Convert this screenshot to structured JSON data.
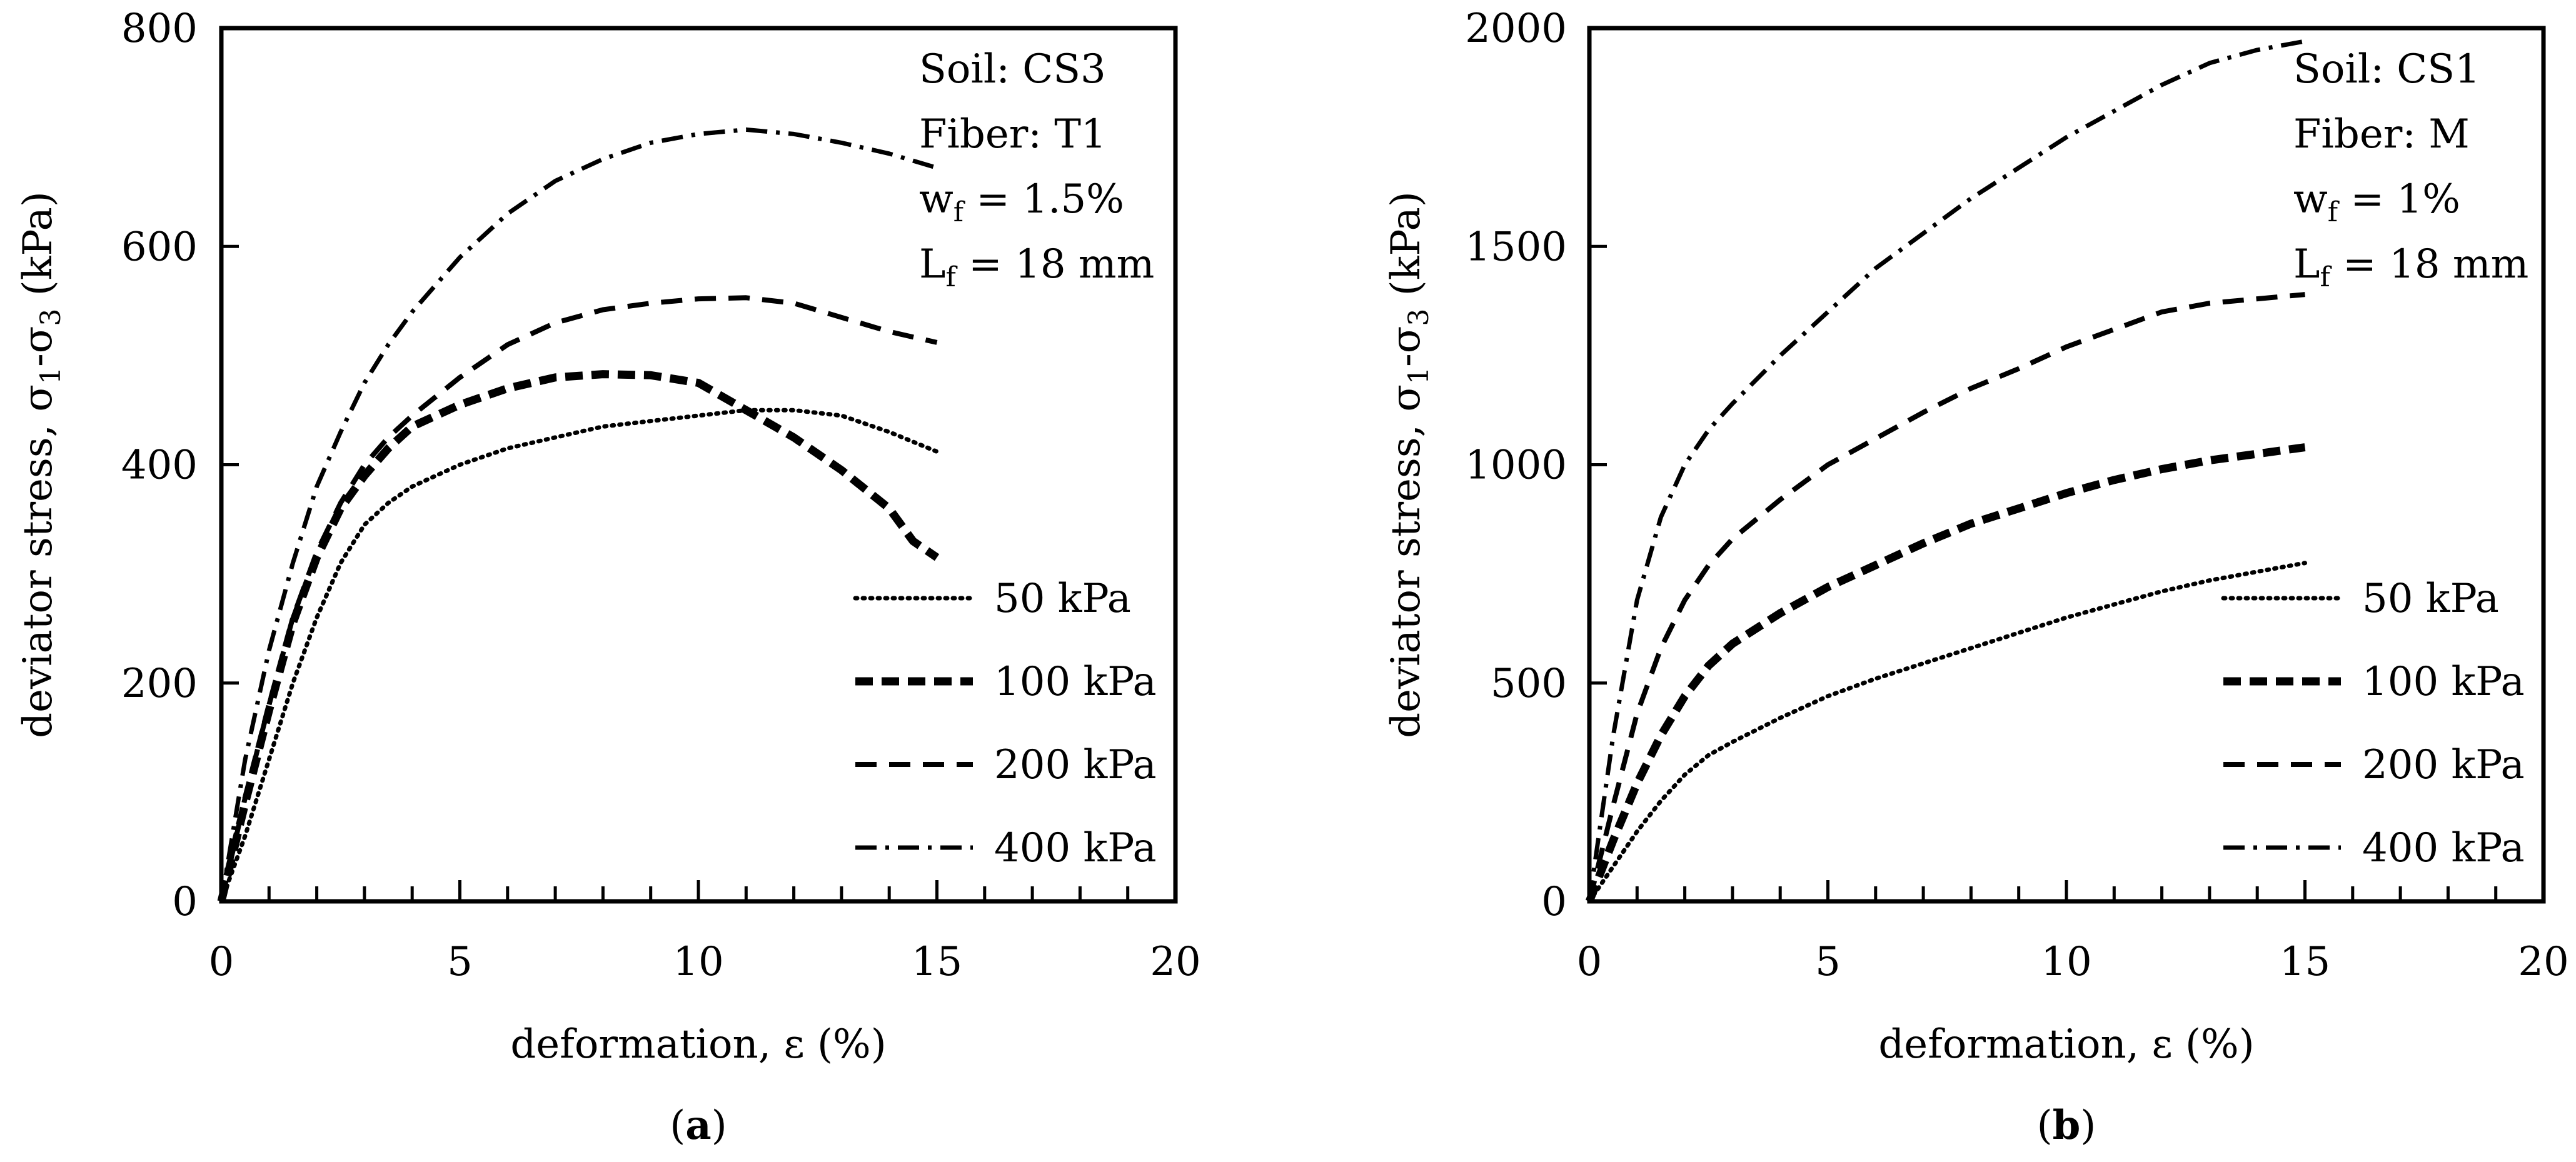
{
  "chart_data": [
    {
      "type": "line",
      "panel_label": "a",
      "xlabel": "deformation, ε (%)",
      "ylabel": "deviator stress, σ1-σ3 (kPa)",
      "ylabel_parts": [
        "deviator stress, σ",
        "1",
        "-σ",
        "3",
        " (kPa)"
      ],
      "xlim": [
        0,
        20
      ],
      "ylim": [
        0,
        800
      ],
      "xticks": [
        0,
        5,
        10,
        15,
        20
      ],
      "yticks": [
        0,
        200,
        400,
        600,
        800
      ],
      "xminor": 1,
      "grid": false,
      "legend_position": "right-middle",
      "annotations": [
        {
          "parts": [
            "Soil: CS3"
          ]
        },
        {
          "parts": [
            "Fiber: T1"
          ]
        },
        {
          "parts": [
            "w",
            "f",
            " = 1.5%"
          ]
        },
        {
          "parts": [
            "L",
            "f",
            " = 18 mm"
          ]
        }
      ],
      "series": [
        {
          "name": "50 kPa",
          "style": "dotted",
          "x": [
            0,
            0.5,
            1,
            1.5,
            2,
            2.5,
            3,
            3.5,
            4,
            5,
            6,
            7,
            8,
            9,
            10,
            11,
            12,
            13,
            14,
            15
          ],
          "y": [
            0,
            60,
            130,
            200,
            260,
            310,
            345,
            365,
            380,
            400,
            415,
            425,
            435,
            440,
            445,
            450,
            450,
            445,
            430,
            412
          ]
        },
        {
          "name": "100 kPa",
          "style": "dashed-heavy",
          "x": [
            0,
            0.5,
            1,
            1.5,
            2,
            2.5,
            3,
            3.5,
            4,
            5,
            6,
            7,
            8,
            9,
            10,
            11,
            12,
            13,
            14,
            14.5,
            15
          ],
          "y": [
            0,
            90,
            175,
            255,
            315,
            360,
            390,
            415,
            435,
            455,
            470,
            480,
            483,
            482,
            475,
            450,
            425,
            395,
            360,
            330,
            315
          ]
        },
        {
          "name": "200 kPa",
          "style": "dashed",
          "x": [
            0,
            0.5,
            1,
            1.5,
            2,
            2.5,
            3,
            3.5,
            4,
            5,
            6,
            7,
            8,
            9,
            10,
            11,
            12,
            13,
            14,
            15
          ],
          "y": [
            0,
            95,
            180,
            260,
            320,
            365,
            400,
            425,
            445,
            480,
            510,
            530,
            542,
            548,
            552,
            553,
            548,
            535,
            522,
            512
          ]
        },
        {
          "name": "400 kPa",
          "style": "dash-dot",
          "x": [
            0,
            0.5,
            1,
            1.5,
            2,
            2.5,
            3,
            3.5,
            4,
            5,
            6,
            7,
            8,
            9,
            10,
            11,
            12,
            13,
            14,
            15
          ],
          "y": [
            0,
            130,
            230,
            310,
            380,
            430,
            475,
            510,
            540,
            590,
            630,
            660,
            680,
            695,
            703,
            707,
            703,
            695,
            685,
            672
          ]
        }
      ]
    },
    {
      "type": "line",
      "panel_label": "b",
      "xlabel": "deformation, ε (%)",
      "ylabel": "deviator stress, σ1-σ3 (kPa)",
      "ylabel_parts": [
        "deviator stress, σ",
        "1",
        "-σ",
        "3",
        " (kPa)"
      ],
      "xlim": [
        0,
        20
      ],
      "ylim": [
        0,
        2000
      ],
      "xticks": [
        0,
        5,
        10,
        15,
        20
      ],
      "yticks": [
        0,
        500,
        1000,
        1500,
        2000
      ],
      "xminor": 1,
      "grid": false,
      "legend_position": "right-middle",
      "annotations": [
        {
          "parts": [
            "Soil: CS1"
          ]
        },
        {
          "parts": [
            "Fiber: M"
          ]
        },
        {
          "parts": [
            "w",
            "f",
            " = 1%"
          ]
        },
        {
          "parts": [
            "L",
            "f",
            " = 18 mm"
          ]
        }
      ],
      "series": [
        {
          "name": "50 kPa",
          "style": "dotted",
          "x": [
            0,
            0.5,
            1,
            1.5,
            2,
            2.5,
            3,
            4,
            5,
            6,
            7,
            8,
            9,
            10,
            11,
            12,
            13,
            14,
            15
          ],
          "y": [
            0,
            80,
            160,
            230,
            290,
            335,
            365,
            420,
            470,
            510,
            545,
            580,
            615,
            650,
            680,
            710,
            735,
            755,
            775
          ]
        },
        {
          "name": "100 kPa",
          "style": "dashed-heavy",
          "x": [
            0,
            0.5,
            1,
            1.5,
            2,
            2.5,
            3,
            4,
            5,
            6,
            7,
            8,
            9,
            10,
            11,
            12,
            13,
            14,
            15
          ],
          "y": [
            0,
            140,
            270,
            380,
            470,
            540,
            590,
            660,
            720,
            770,
            820,
            865,
            900,
            935,
            965,
            990,
            1010,
            1025,
            1040
          ]
        },
        {
          "name": "200 kPa",
          "style": "dashed",
          "x": [
            0,
            0.5,
            1,
            1.5,
            2,
            2.5,
            3,
            4,
            5,
            6,
            7,
            8,
            9,
            10,
            11,
            12,
            13,
            14,
            15
          ],
          "y": [
            0,
            220,
            430,
            580,
            690,
            770,
            830,
            920,
            1000,
            1060,
            1120,
            1175,
            1220,
            1270,
            1310,
            1350,
            1370,
            1380,
            1390
          ]
        },
        {
          "name": "400 kPa",
          "style": "dash-dot",
          "x": [
            0,
            0.5,
            1,
            1.5,
            2,
            2.5,
            3,
            4,
            5,
            6,
            7,
            8,
            9,
            10,
            11,
            12,
            13,
            14,
            15
          ],
          "y": [
            0,
            380,
            690,
            880,
            1000,
            1080,
            1140,
            1250,
            1350,
            1450,
            1530,
            1610,
            1680,
            1750,
            1810,
            1870,
            1920,
            1950,
            1970
          ]
        }
      ]
    }
  ]
}
